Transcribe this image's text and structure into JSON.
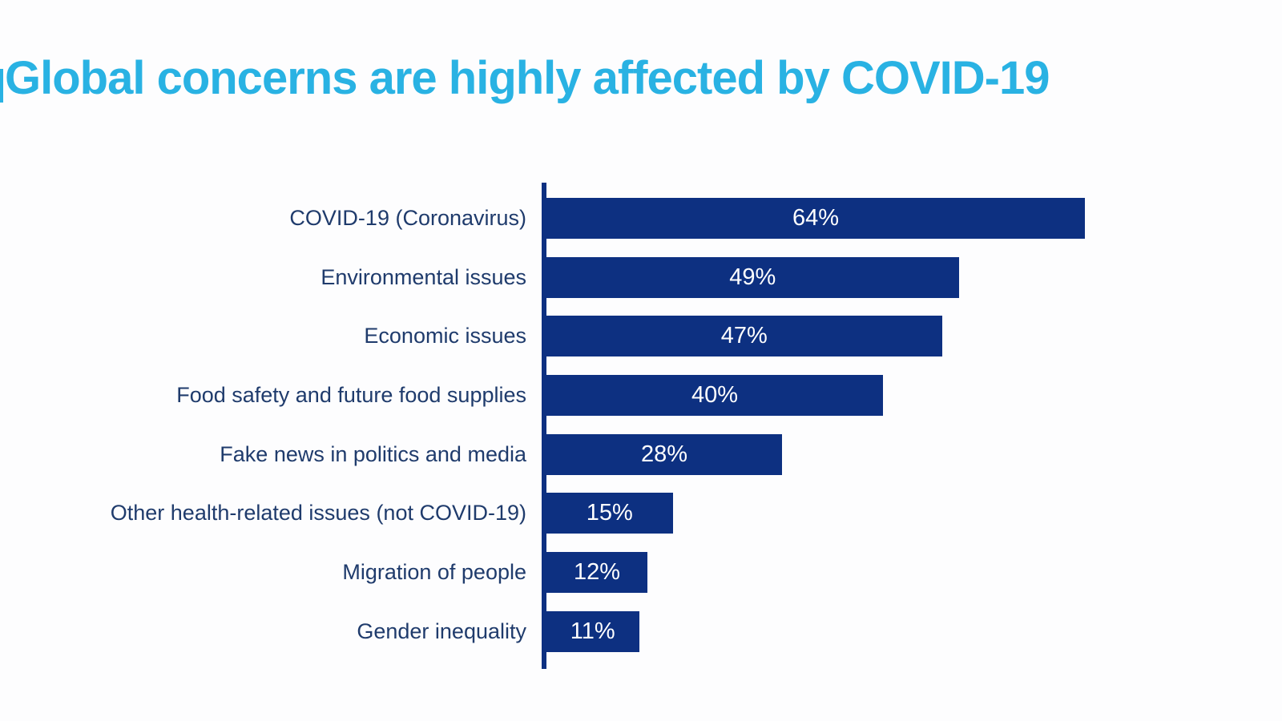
{
  "title": {
    "text": "Global concerns are highly affected by COVID-19",
    "color": "#29b2e3"
  },
  "colors": {
    "background": "#fdfdfe",
    "bar": "#0d3081",
    "axis": "#0d3081",
    "category_label": "#1f3b6c",
    "value_label": "#ffffff",
    "title": "#29b2e3"
  },
  "chart_data": {
    "type": "bar",
    "orientation": "horizontal",
    "title": "Global concerns are highly affected by COVID-19",
    "categories": [
      "COVID-19 (Coronavirus)",
      "Environmental issues",
      "Economic issues",
      "Food safety and future food supplies",
      "Fake news in politics and media",
      "Other health-related issues (not COVID-19)",
      "Migration of people",
      "Gender inequality"
    ],
    "values": [
      64,
      49,
      47,
      40,
      28,
      15,
      12,
      11
    ],
    "value_labels": [
      "64%",
      "49%",
      "47%",
      "40%",
      "28%",
      "15%",
      "12%",
      "11%"
    ],
    "unit": "%",
    "xlabel": "",
    "ylabel": "",
    "xlim": [
      0,
      64
    ],
    "grid": false,
    "legend": false,
    "value_label_position": "center",
    "bar_color": "#0d3081",
    "axis_color": "#0d3081",
    "label_color": "#1f3b6c",
    "value_label_color": "#ffffff"
  }
}
